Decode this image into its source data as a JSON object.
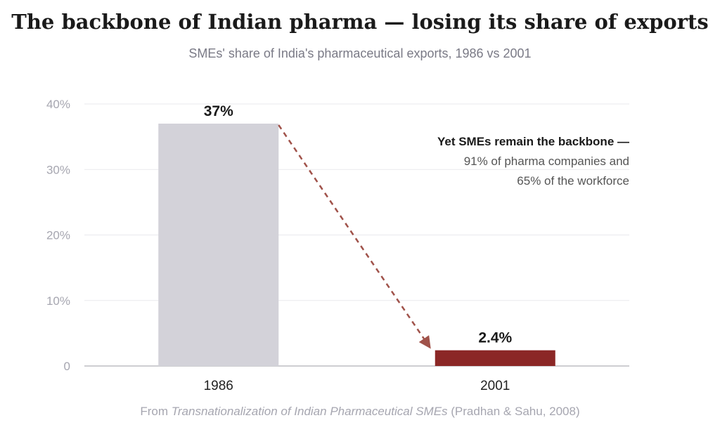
{
  "chart_data": {
    "type": "bar",
    "title": "The backbone of Indian pharma — losing its share of exports",
    "subtitle": "SMEs' share of India's pharmaceutical exports, 1986 vs 2001",
    "categories": [
      "1986",
      "2001"
    ],
    "values": [
      37,
      2.4
    ],
    "value_labels": [
      "37%",
      "2.4%"
    ],
    "colors": [
      "#d3d2d9",
      "#8b2726"
    ],
    "ylim": [
      0,
      40
    ],
    "yticks": [
      0,
      10,
      20,
      30,
      40
    ],
    "ytick_labels": [
      "0",
      "10%",
      "20%",
      "30%",
      "40%"
    ],
    "grid": true,
    "annotation": {
      "heading": "Yet SMEs remain the backbone —",
      "lines": [
        "91% of pharma companies and",
        "65% of the workforce"
      ]
    },
    "arrow": {
      "from": "1986",
      "to": "2001",
      "style": "dashed",
      "color": "#a0524a"
    },
    "source_prefix": "From ",
    "source_title": "Transnationalization of Indian Pharmaceutical SMEs",
    "source_suffix": " (Pradhan & Sahu, 2008)"
  }
}
